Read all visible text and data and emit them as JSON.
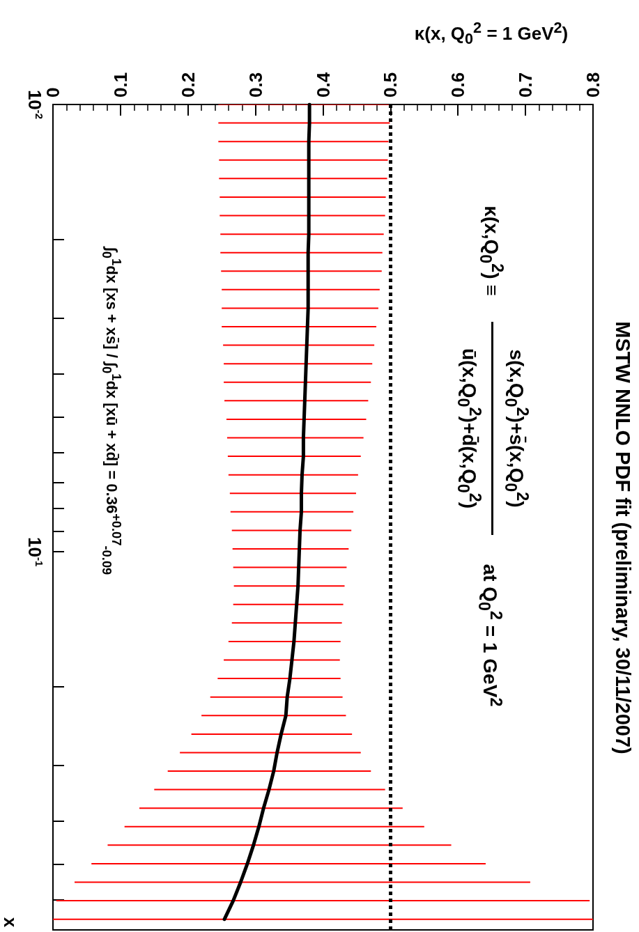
{
  "chart_data": {
    "type": "bar",
    "orientation": "horizontal",
    "title": "MSTW NNLO PDF fit (preliminary, 30/11/2007)",
    "xlabel": "κ(x, Q$_{0}$$^{2}$ = 1 GeV$^{2}$)",
    "ylabel": "x",
    "annotations": [
      "κ(x,Q$_{0}$$^{2}$) ≡",
      "s(x,Q$_{0}$$^{2}$)+s̄(x,Q$_{0}$$^{2}$)",
      "ū(x,Q$_{0}$$^{2}$)+d̄(x,Q$_{0}$$^{2}$)",
      "at Q$_{0}$$^{2}$ = 1 GeV$^{2}$",
      "∫$_{0}$$^{1}$dx [xs + xs̄] / ∫$_{0}$$^{1}$dx [xū + xd̄] = 0.36$^{+0.07}$$_{-0.09}$"
    ],
    "x": [
      0.01,
      0.011,
      0.0121,
      0.01331,
      0.01464,
      0.01611,
      0.01772,
      0.01949,
      0.02144,
      0.02358,
      0.02594,
      0.02853,
      0.03138,
      0.03452,
      0.03797,
      0.04177,
      0.04595,
      0.05054,
      0.0556,
      0.06116,
      0.06727,
      0.074,
      0.0814,
      0.08954,
      0.0985,
      0.1083,
      0.1192,
      0.1311,
      0.1442,
      0.1586,
      0.1745,
      0.1919,
      0.2111,
      0.2323,
      0.2555,
      0.281,
      0.3091,
      0.34,
      0.374,
      0.4115,
      0.4526,
      0.4979,
      0.5476,
      0.6024,
      0.6626
    ],
    "series": [
      {
        "color": "#ff0000",
        "base": [
          0.245,
          0.245,
          0.245,
          0.246,
          0.246,
          0.247,
          0.247,
          0.248,
          0.248,
          0.249,
          0.25,
          0.25,
          0.25,
          0.252,
          0.253,
          0.253,
          0.254,
          0.257,
          0.258,
          0.259,
          0.26,
          0.262,
          0.263,
          0.265,
          0.266,
          0.267,
          0.268,
          0.267,
          0.265,
          0.26,
          0.253,
          0.244,
          0.233,
          0.22,
          0.205,
          0.188,
          0.17,
          0.15,
          0.128,
          0.106,
          0.081,
          0.057,
          0.032,
          0.005,
          0.0
        ],
        "values": [
          0.254,
          0.254,
          0.252,
          0.25,
          0.249,
          0.246,
          0.245,
          0.242,
          0.24,
          0.238,
          0.234,
          0.232,
          0.229,
          0.224,
          0.22,
          0.218,
          0.213,
          0.207,
          0.202,
          0.197,
          0.192,
          0.187,
          0.182,
          0.177,
          0.172,
          0.168,
          0.164,
          0.163,
          0.163,
          0.166,
          0.172,
          0.182,
          0.196,
          0.214,
          0.238,
          0.268,
          0.301,
          0.342,
          0.39,
          0.444,
          0.509,
          0.584,
          0.675,
          0.79,
          0.8
        ]
      },
      {
        "type": "line",
        "color": "#000000",
        "values": [
          0.38,
          0.38,
          0.379,
          0.379,
          0.379,
          0.379,
          0.379,
          0.379,
          0.378,
          0.378,
          0.378,
          0.378,
          0.377,
          0.376,
          0.375,
          0.374,
          0.373,
          0.372,
          0.371,
          0.371,
          0.369,
          0.368,
          0.368,
          0.366,
          0.365,
          0.364,
          0.363,
          0.361,
          0.359,
          0.357,
          0.354,
          0.351,
          0.347,
          0.345,
          0.338,
          0.332,
          0.327,
          0.32,
          0.312,
          0.305,
          0.297,
          0.288,
          0.278,
          0.267,
          0.254
        ]
      }
    ],
    "log": "y",
    "marker": "none",
    "line_style": "solid",
    "xlim": [
      0,
      0.8
    ],
    "xticks": [
      0,
      0.1,
      0.2,
      0.3,
      0.4,
      0.5,
      0.6,
      0.7,
      0.8
    ],
    "ylim": [
      0.7,
      0.01
    ],
    "yticks": [
      {
        "value": 0.01,
        "label": "10$^{-2}$"
      },
      {
        "value": 0.02,
        "label": null
      },
      {
        "value": 0.03,
        "label": null
      },
      {
        "value": 0.04,
        "label": null
      },
      {
        "value": 0.05,
        "label": null
      },
      {
        "value": 0.06,
        "label": null
      },
      {
        "value": 0.07,
        "label": null
      },
      {
        "value": 0.08,
        "label": null
      },
      {
        "value": 0.09,
        "label": null
      },
      {
        "value": 0.1,
        "label": "10$^{-1}$"
      },
      {
        "value": 0.2,
        "label": null
      },
      {
        "value": 0.3,
        "label": null
      },
      {
        "value": 0.4,
        "label": null
      },
      {
        "value": 0.5,
        "label": null
      },
      {
        "value": 0.6,
        "label": null
      },
      {
        "value": 0.7,
        "label": null
      }
    ],
    "ref_lines": [
      {
        "axis": "x",
        "value": 0.5,
        "color": "#000000",
        "line_style": "dotted"
      }
    ]
  }
}
